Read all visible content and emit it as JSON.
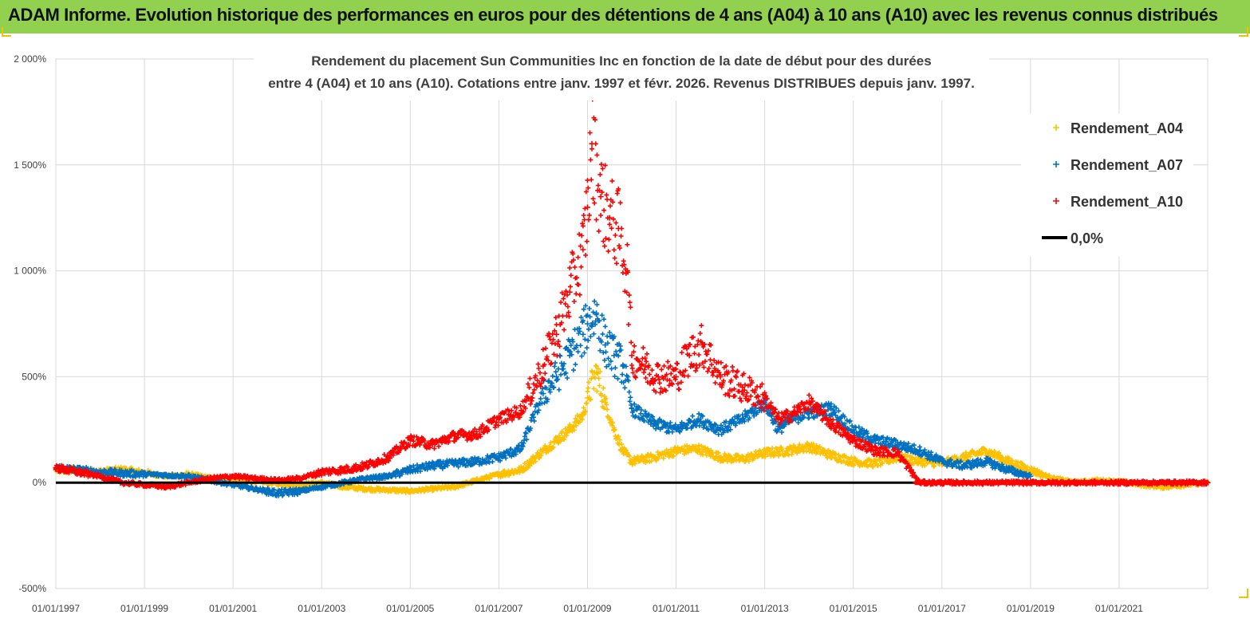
{
  "header": {
    "title": "ADAM Informe. Evolution historique des performances en euros pour des détentions de 4 ans (A04) à 10 ans (A10) avec les revenus connus distribués"
  },
  "chart_data": {
    "type": "scatter",
    "title_line1": "Rendement du placement Sun Communities Inc en fonction de la date de début pour des durées",
    "title_line2": "entre 4 (A04) et 10 ans (A10).  Cotations entre janv. 1997 et févr. 2026. Revenus DISTRIBUES depuis janv. 1997.",
    "xlabel": "",
    "ylabel": "",
    "x_range": [
      1997.0,
      2023.0
    ],
    "ylim": [
      -500,
      2000
    ],
    "y_ticks": [
      2000,
      1500,
      1000,
      500,
      0,
      -500
    ],
    "y_tick_labels": [
      "2 000%",
      "1 500%",
      "1 000%",
      "500%",
      "0%",
      "-500%"
    ],
    "x_ticks": [
      1997,
      1999,
      2001,
      2003,
      2005,
      2007,
      2009,
      2011,
      2013,
      2015,
      2017,
      2019,
      2021
    ],
    "x_tick_labels": [
      "01/01/1997",
      "01/01/1999",
      "01/01/2001",
      "01/01/2003",
      "01/01/2005",
      "01/01/2007",
      "01/01/2009",
      "01/01/2011",
      "01/01/2013",
      "01/01/2015",
      "01/01/2017",
      "01/01/2019",
      "01/01/2021"
    ],
    "legend_position": "top-right",
    "series": [
      {
        "name": "Rendement_A04",
        "color": "#ffc000",
        "marker": "+",
        "x": [
          1997.0,
          1997.5,
          1998.0,
          1998.5,
          1999.0,
          1999.5,
          2000.0,
          2000.5,
          2001.0,
          2001.5,
          2002.0,
          2002.5,
          2003.0,
          2003.5,
          2004.0,
          2004.5,
          2005.0,
          2005.5,
          2006.0,
          2006.5,
          2007.0,
          2007.5,
          2008.0,
          2008.3,
          2008.6,
          2008.9,
          2009.0,
          2009.2,
          2009.4,
          2009.6,
          2009.8,
          2010.0,
          2010.5,
          2011.0,
          2011.5,
          2012.0,
          2012.5,
          2013.0,
          2013.5,
          2014.0,
          2014.5,
          2015.0,
          2015.5,
          2016.0,
          2016.5,
          2017.0,
          2017.5,
          2018.0,
          2018.5,
          2019.0,
          2019.5,
          2020.0,
          2020.5,
          2021.0,
          2021.5,
          2022.0,
          2022.5,
          2023.0
        ],
        "y": [
          60,
          55,
          50,
          60,
          45,
          30,
          40,
          20,
          10,
          5,
          -5,
          -10,
          0,
          -20,
          -30,
          -35,
          -40,
          -30,
          -20,
          10,
          40,
          60,
          150,
          200,
          250,
          320,
          400,
          520,
          380,
          250,
          150,
          100,
          120,
          150,
          160,
          120,
          110,
          140,
          150,
          170,
          130,
          100,
          90,
          120,
          100,
          90,
          120,
          150,
          100,
          60,
          20,
          0,
          10,
          5,
          -10,
          -20,
          -10,
          0
        ]
      },
      {
        "name": "Rendement_A07",
        "color": "#0070c0",
        "marker": "+",
        "x": [
          1997.0,
          1997.5,
          1998.0,
          1998.5,
          1999.0,
          1999.5,
          2000.0,
          2000.5,
          2001.0,
          2001.5,
          2002.0,
          2002.5,
          2003.0,
          2003.5,
          2004.0,
          2004.5,
          2005.0,
          2005.5,
          2006.0,
          2006.5,
          2007.0,
          2007.5,
          2008.0,
          2008.3,
          2008.6,
          2008.9,
          2009.0,
          2009.2,
          2009.4,
          2009.6,
          2009.8,
          2010.0,
          2010.5,
          2011.0,
          2011.5,
          2012.0,
          2012.5,
          2013.0,
          2013.3,
          2013.6,
          2014.0,
          2014.5,
          2015.0,
          2015.5,
          2016.0,
          2016.5,
          2017.0,
          2017.5,
          2018.0,
          2018.5,
          2019.0
        ],
        "y": [
          70,
          60,
          50,
          45,
          40,
          35,
          30,
          10,
          -10,
          -30,
          -50,
          -40,
          -20,
          0,
          20,
          30,
          60,
          80,
          90,
          100,
          120,
          160,
          420,
          500,
          600,
          700,
          750,
          800,
          650,
          600,
          550,
          350,
          280,
          250,
          300,
          250,
          300,
          380,
          250,
          300,
          330,
          350,
          250,
          200,
          180,
          150,
          100,
          80,
          100,
          60,
          30
        ]
      },
      {
        "name": "Rendement_A10",
        "color": "#ff0000",
        "marker": "+",
        "x": [
          1997.0,
          1997.5,
          1998.0,
          1998.5,
          1999.0,
          1999.5,
          2000.0,
          2000.5,
          2001.0,
          2001.5,
          2002.0,
          2002.5,
          2003.0,
          2003.5,
          2004.0,
          2004.5,
          2005.0,
          2005.5,
          2006.0,
          2006.5,
          2007.0,
          2007.5,
          2008.0,
          2008.3,
          2008.6,
          2008.9,
          2009.0,
          2009.1,
          2009.3,
          2009.5,
          2009.7,
          2009.9,
          2010.0,
          2010.3,
          2010.6,
          2011.0,
          2011.3,
          2011.6,
          2012.0,
          2012.5,
          2013.0,
          2013.3,
          2013.6,
          2014.0,
          2014.5,
          2015.0,
          2015.5,
          2016.0,
          2016.5,
          2017.0,
          2018.0,
          2019.0,
          2020.0,
          2021.0,
          2022.0,
          2023.0
        ],
        "y": [
          70,
          50,
          30,
          0,
          -10,
          -20,
          0,
          20,
          30,
          20,
          10,
          20,
          50,
          60,
          80,
          120,
          200,
          180,
          220,
          230,
          300,
          340,
          550,
          700,
          900,
          1100,
          1300,
          1600,
          1350,
          1250,
          1200,
          1000,
          600,
          550,
          500,
          500,
          600,
          650,
          500,
          450,
          400,
          300,
          320,
          380,
          280,
          200,
          150,
          140,
          0,
          0,
          0,
          0,
          0,
          0,
          0,
          0
        ]
      },
      {
        "name": "0,0%",
        "color": "#000000",
        "marker": "line",
        "x": [
          1997.0,
          2023.0
        ],
        "y": [
          0,
          0
        ]
      }
    ]
  }
}
